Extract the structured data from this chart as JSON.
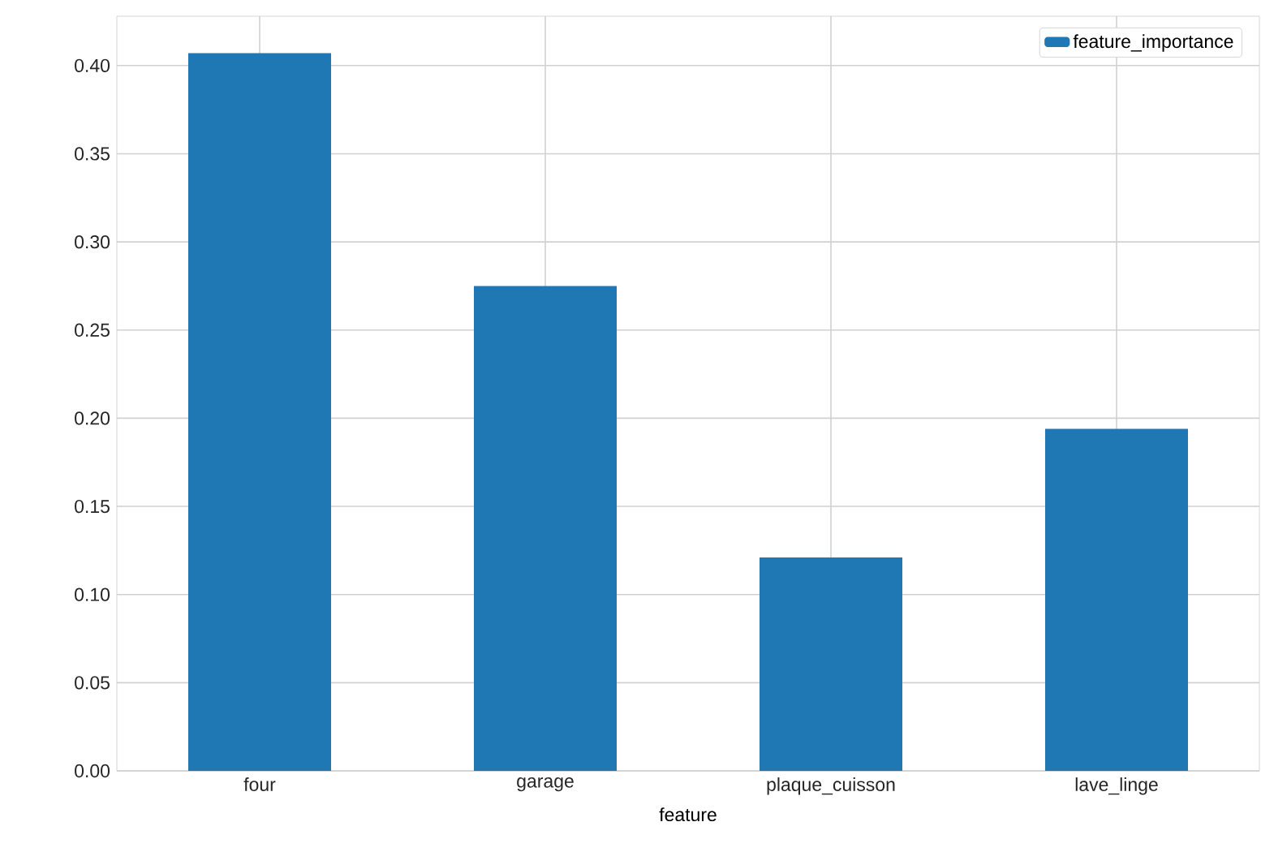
{
  "chart_data": {
    "type": "bar",
    "xlabel": "feature",
    "categories": [
      "four",
      "garage",
      "plaque_cuisson",
      "lave_linge"
    ],
    "series": [
      {
        "name": "feature_importance",
        "color": "#1f77b4",
        "values": [
          0.407,
          0.275,
          0.121,
          0.194
        ]
      }
    ],
    "ylim": [
      0,
      0.428
    ],
    "yticks": [
      {
        "value": 0,
        "label": "0.00"
      },
      {
        "value": 0.05,
        "label": "0.05"
      },
      {
        "value": 0.1,
        "label": "0.10"
      },
      {
        "value": 0.15,
        "label": "0.15"
      },
      {
        "value": 0.2,
        "label": "0.20"
      },
      {
        "value": 0.25,
        "label": "0.25"
      },
      {
        "value": 0.3,
        "label": "0.30"
      },
      {
        "value": 0.35,
        "label": "0.35"
      },
      {
        "value": 0.4,
        "label": "0.40"
      }
    ],
    "grid": true,
    "legend": "top right"
  }
}
